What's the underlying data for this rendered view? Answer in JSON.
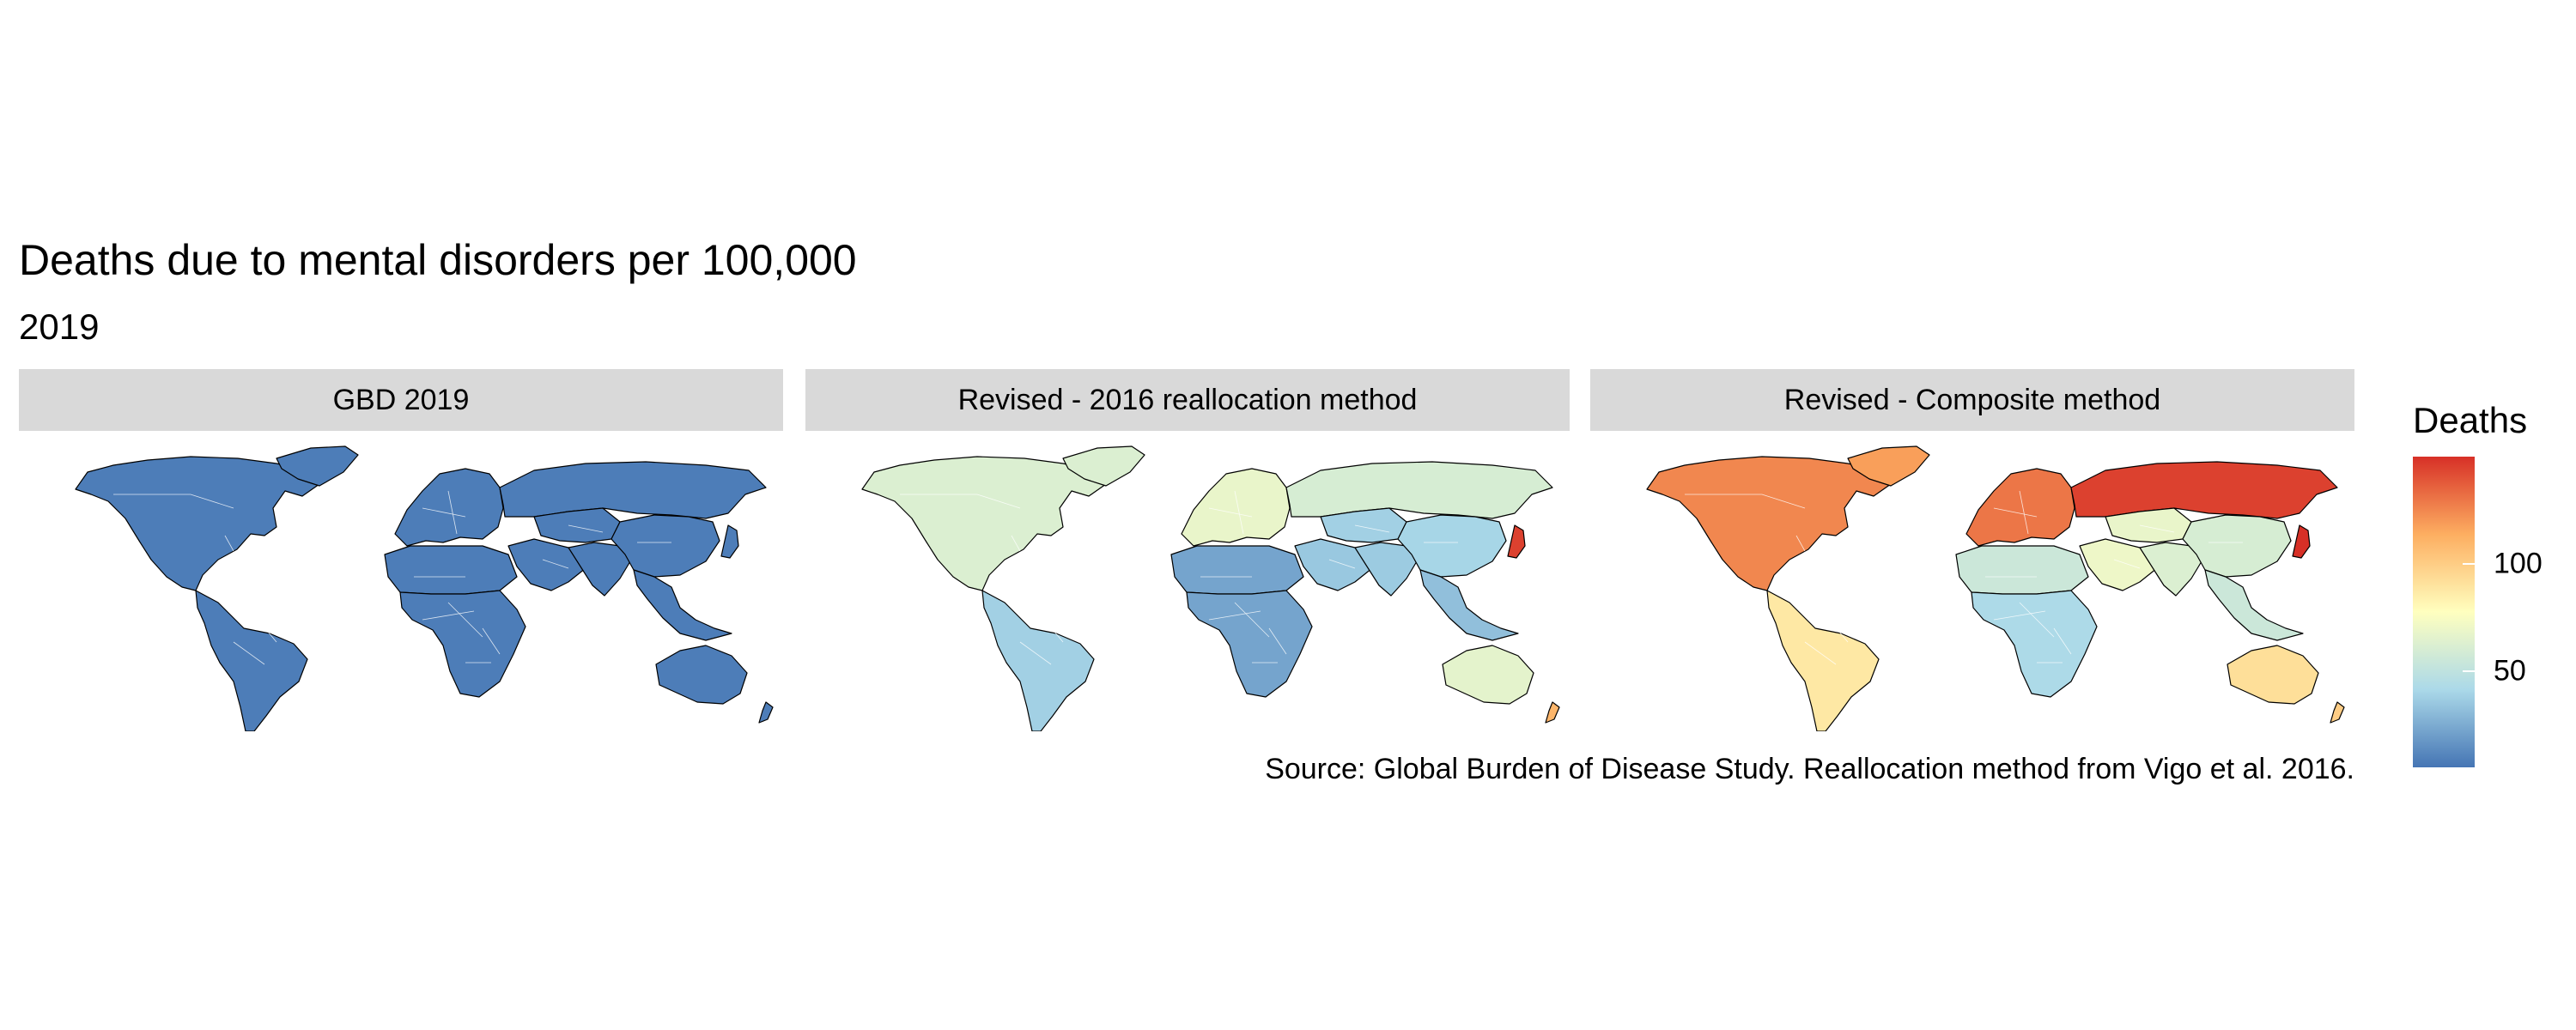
{
  "title": "Deaths due to mental disorders per 100,000",
  "subtitle": "2019",
  "caption": "Source: Global Burden of Disease Study. Reallocation method from Vigo et al. 2016.",
  "colors": {
    "scale": [
      "#4575b4",
      "#abd9e9",
      "#ffffbf",
      "#fdae61",
      "#d73027"
    ],
    "strip_bg": "#d9d9d9",
    "border": "#000000",
    "internal_border": "#ffffff"
  },
  "panels": [
    {
      "label": "GBD 2019",
      "regions": {
        "north_america": 8,
        "greenland": 8,
        "latin_america": 8,
        "europe": 8,
        "russia": 8,
        "north_africa": 8,
        "sub_saharan_africa": 8,
        "middle_east": 8,
        "central_asia": 8,
        "south_asia": 8,
        "china": 8,
        "japan": 8,
        "southeast_asia": 8,
        "australia": 8,
        "new_zealand": 8
      }
    },
    {
      "label": "Revised - 2016 reallocation method",
      "regions": {
        "north_america": 62,
        "greenland": 62,
        "latin_america": 38,
        "europe": 68,
        "russia": 60,
        "north_africa": 22,
        "sub_saharan_africa": 22,
        "middle_east": 35,
        "central_asia": 38,
        "south_asia": 36,
        "china": 40,
        "japan": 145,
        "southeast_asia": 32,
        "australia": 66,
        "new_zealand": 110
      }
    },
    {
      "label": "Revised - Composite method",
      "regions": {
        "north_america": 125,
        "greenland": 118,
        "latin_america": 88,
        "europe": 130,
        "russia": 145,
        "north_africa": 55,
        "sub_saharan_africa": 42,
        "middle_east": 70,
        "central_asia": 68,
        "south_asia": 62,
        "china": 60,
        "japan": 150,
        "southeast_asia": 55,
        "australia": 92,
        "new_zealand": 100
      }
    }
  ],
  "legend": {
    "title": "Deaths",
    "min": 5,
    "max": 150,
    "ticks": [
      {
        "value": 100,
        "label": "100"
      },
      {
        "value": 50,
        "label": "50"
      }
    ]
  }
}
